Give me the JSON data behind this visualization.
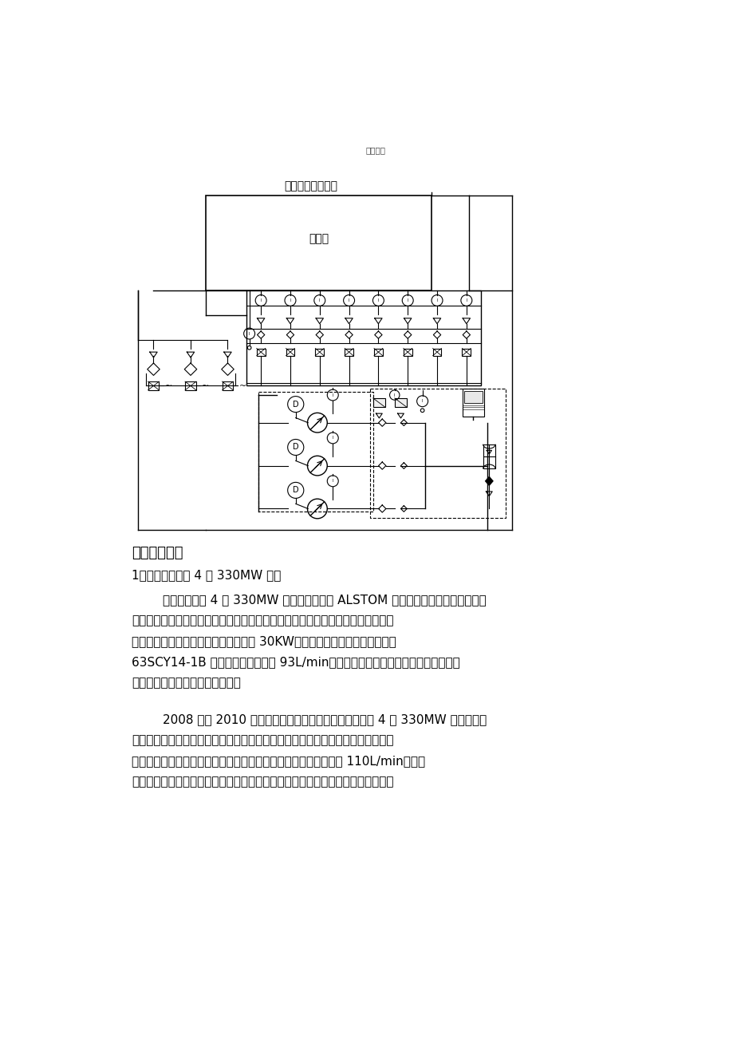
{
  "page_title_top": "细心整理",
  "diagram_title": "顶轴油液压原理图",
  "main_tank_label": "主油箱",
  "section_header": "四、改造实例",
  "subsection": "1、华能淮阴电厂 4 台 330MW 机组",
  "para1_lines": [
    "        华能淮阴电厂 4 台 330MW 机组是北重引进 ALSTOM 技术生产的汽轮发电机组。该",
    "机组的顶轴油系统随汽轮机配套供货，接受三台油泵供油，油泵之间通过手动阀切",
    "换实现二用一备的工作方式。电动机为 30KW，油泵为上海高压油泵厂生产的",
    "63SCY14-1B 型油泵，最大流量为 93L/min。在运用过程中常常出现油泵打不出压力",
    "的状况，影响了机组的正常运行。"
  ],
  "para2_lines": [
    "        2008 年至 2010 年，新华威尔公司完成了华能淮阴电厂 4 台 330MW 机组顶轴油",
    "系统的改造。改造中接受进口的恒压变量泵替代国产手动变量泵，在运行中保持供",
    "油压力恒定，并能依据系统须要自动调整输出流量，最大流量可达 110L/min。三台",
    "油泵二用一备运行，可以将随意一台泵作为备用泵，当压力降低时可干脆启动备用"
  ],
  "bg_color": "#ffffff",
  "text_color": "#000000",
  "line_color": "#000000"
}
